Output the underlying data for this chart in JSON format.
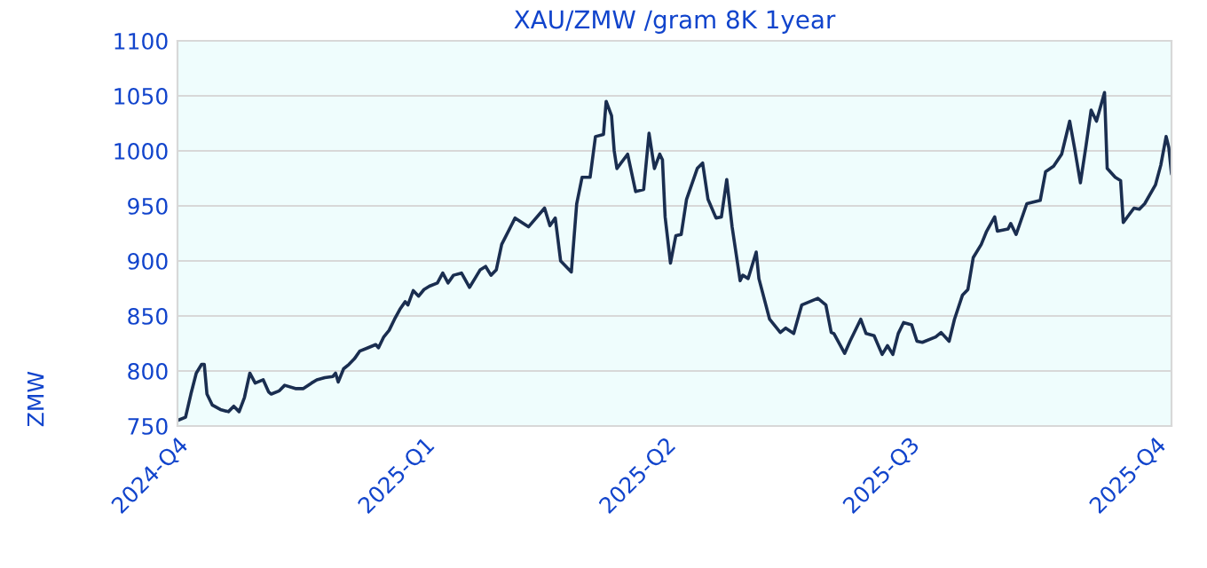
{
  "chart_data": {
    "type": "line",
    "title": "XAU/ZMW /gram 8K 1year",
    "ylabel": "ZMW",
    "x": [
      "2024-10-01",
      "2024-10-04",
      "2024-10-06",
      "2024-10-08",
      "2024-10-10",
      "2024-10-11",
      "2024-10-12",
      "2024-10-14",
      "2024-10-17",
      "2024-10-20",
      "2024-10-22",
      "2024-10-24",
      "2024-10-26",
      "2024-10-28",
      "2024-10-30",
      "2024-11-02",
      "2024-11-04",
      "2024-11-05",
      "2024-11-08",
      "2024-11-10",
      "2024-11-14",
      "2024-11-17",
      "2024-11-20",
      "2024-11-22",
      "2024-11-25",
      "2024-11-28",
      "2024-11-29",
      "2024-11-30",
      "2024-12-02",
      "2024-12-04",
      "2024-12-06",
      "2024-12-08",
      "2024-12-11",
      "2024-12-14",
      "2024-12-15",
      "2024-12-17",
      "2024-12-19",
      "2024-12-21",
      "2024-12-23",
      "2024-12-25",
      "2024-12-26",
      "2024-12-28",
      "2024-12-30",
      "2025-01-01",
      "2025-01-03",
      "2025-01-06",
      "2025-01-08",
      "2025-01-10",
      "2025-01-12",
      "2025-01-15",
      "2025-01-18",
      "2025-01-20",
      "2025-01-22",
      "2025-01-24",
      "2025-01-26",
      "2025-01-28",
      "2025-01-30",
      "2025-02-04",
      "2025-02-09",
      "2025-02-15",
      "2025-02-17",
      "2025-02-19",
      "2025-02-21",
      "2025-02-25",
      "2025-02-27",
      "2025-03-01",
      "2025-03-04",
      "2025-03-06",
      "2025-03-09",
      "2025-03-10",
      "2025-03-12",
      "2025-03-13",
      "2025-03-14",
      "2025-03-18",
      "2025-03-21",
      "2025-03-24",
      "2025-03-26",
      "2025-03-28",
      "2025-03-30",
      "2025-03-31",
      "2025-04-01",
      "2025-04-03",
      "2025-04-05",
      "2025-04-07",
      "2025-04-09",
      "2025-04-13",
      "2025-04-15",
      "2025-04-17",
      "2025-04-20",
      "2025-04-22",
      "2025-04-24",
      "2025-04-26",
      "2025-04-29",
      "2025-04-30",
      "2025-05-02",
      "2025-05-05",
      "2025-05-06",
      "2025-05-10",
      "2025-05-14",
      "2025-05-16",
      "2025-05-19",
      "2025-05-22",
      "2025-05-28",
      "2025-05-31",
      "2025-06-02",
      "2025-06-03",
      "2025-06-07",
      "2025-06-09",
      "2025-06-13",
      "2025-06-15",
      "2025-06-18",
      "2025-06-21",
      "2025-06-23",
      "2025-06-25",
      "2025-06-27",
      "2025-06-29",
      "2025-07-02",
      "2025-07-04",
      "2025-07-06",
      "2025-07-11",
      "2025-07-13",
      "2025-07-16",
      "2025-07-18",
      "2025-07-21",
      "2025-07-23",
      "2025-07-25",
      "2025-07-28",
      "2025-07-30",
      "2025-08-02",
      "2025-08-03",
      "2025-08-07",
      "2025-08-08",
      "2025-08-10",
      "2025-08-14",
      "2025-08-19",
      "2025-08-21",
      "2025-08-24",
      "2025-08-27",
      "2025-08-30",
      "2025-09-01",
      "2025-09-03",
      "2025-09-05",
      "2025-09-07",
      "2025-09-09",
      "2025-09-12",
      "2025-09-13",
      "2025-09-16",
      "2025-09-18",
      "2025-09-19",
      "2025-09-23",
      "2025-09-25",
      "2025-09-27",
      "2025-10-01",
      "2025-10-03",
      "2025-10-05",
      "2025-10-06",
      "2025-10-07"
    ],
    "series": [
      {
        "color": "#1a2e50",
        "values": [
          755,
          758,
          779,
          798,
          806,
          806,
          779,
          769,
          765,
          763,
          768,
          763,
          776,
          798,
          789,
          792,
          781,
          779,
          782,
          787,
          784,
          784,
          789,
          792,
          794,
          795,
          798,
          790,
          802,
          806,
          811,
          818,
          821,
          824,
          821,
          831,
          837,
          847,
          856,
          863,
          860,
          873,
          868,
          874,
          877,
          880,
          889,
          880,
          887,
          889,
          876,
          884,
          892,
          895,
          887,
          892,
          915,
          939,
          931,
          948,
          932,
          939,
          900,
          890,
          952,
          976,
          976,
          1013,
          1015,
          1045,
          1032,
          1000,
          984,
          997,
          963,
          965,
          1016,
          984,
          997,
          992,
          940,
          898,
          923,
          924,
          956,
          984,
          989,
          956,
          939,
          940,
          974,
          931,
          882,
          887,
          884,
          908,
          884,
          847,
          835,
          839,
          834,
          860,
          866,
          860,
          835,
          834,
          816,
          827,
          847,
          834,
          832,
          815,
          823,
          815,
          834,
          844,
          842,
          827,
          826,
          831,
          835,
          827,
          847,
          869,
          874,
          903,
          915,
          927,
          940,
          927,
          929,
          934,
          924,
          952,
          955,
          981,
          986,
          997,
          1027,
          1000,
          971,
          1003,
          1037,
          1027,
          1053,
          984,
          976,
          973,
          935,
          948,
          947,
          952,
          969,
          987,
          1013,
          1003,
          979
        ]
      }
    ],
    "xlim": [
      "2024-10-01",
      "2025-10-07"
    ],
    "xticks": [
      {
        "value": "2024-10-01",
        "label": "2024-Q4"
      },
      {
        "value": "2025-01-01",
        "label": "2025-Q1"
      },
      {
        "value": "2025-04-01",
        "label": "2025-Q2"
      },
      {
        "value": "2025-07-01",
        "label": "2025-Q3"
      },
      {
        "value": "2025-10-01",
        "label": "2025-Q4"
      }
    ],
    "ylim": [
      750,
      1100
    ],
    "yticks": [
      750,
      800,
      850,
      900,
      950,
      1000,
      1050,
      1100
    ],
    "grid": "y",
    "legend": false,
    "marker": "none",
    "line_style": "solid"
  }
}
